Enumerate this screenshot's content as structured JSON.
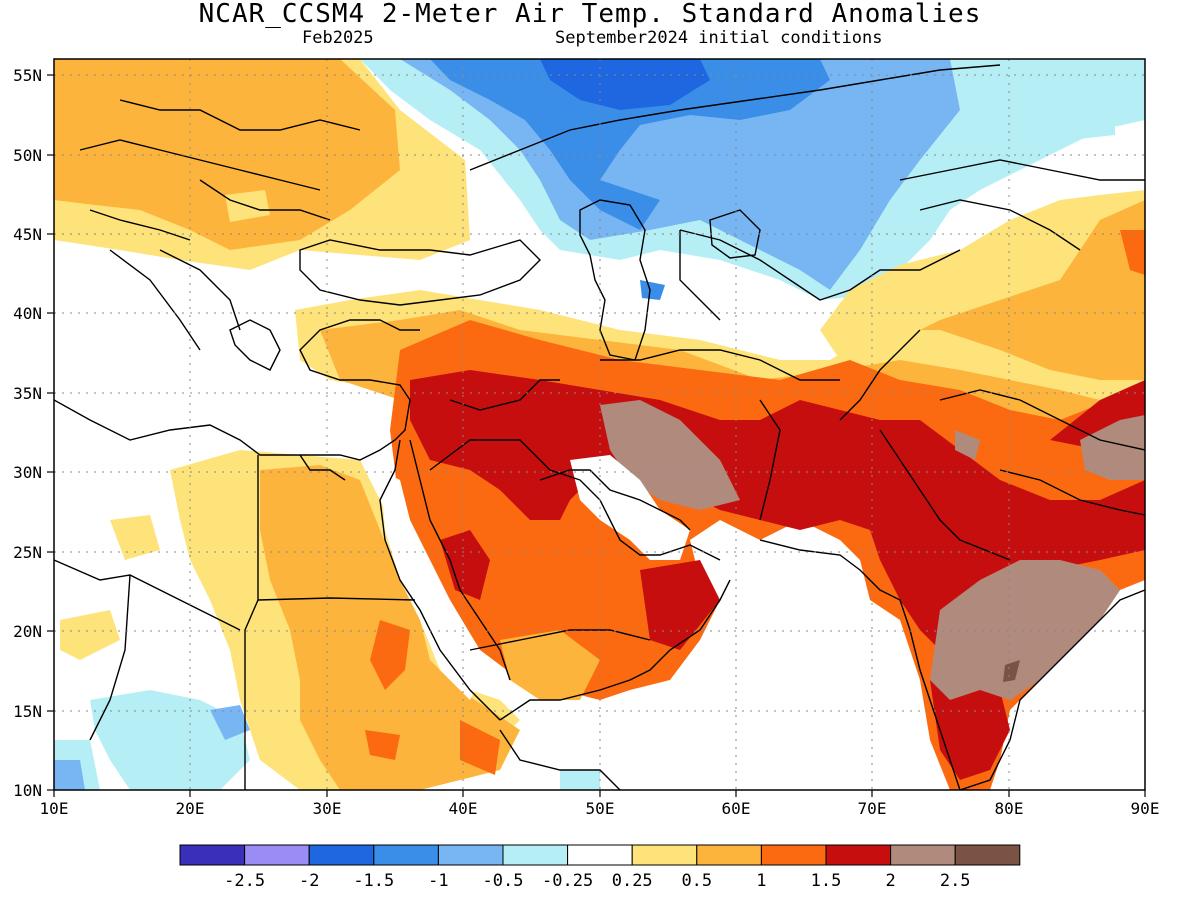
{
  "header": {
    "title": "NCAR_CCSM4 2-Meter Air Temp. Standard Anomalies",
    "valid_month": "Feb2025",
    "initial_conditions": "September2024 initial conditions"
  },
  "axes": {
    "lat_labels": [
      "55N",
      "50N",
      "45N",
      "40N",
      "35N",
      "30N",
      "25N",
      "20N",
      "15N",
      "10N"
    ],
    "lon_labels": [
      "10E",
      "20E",
      "30E",
      "40E",
      "50E",
      "60E",
      "70E",
      "80E",
      "90E"
    ],
    "lat_range": [
      10,
      56
    ],
    "lon_range": [
      10,
      90
    ],
    "grid": true
  },
  "colorbar": {
    "colors": [
      "#3a2fb8",
      "#9b8cf5",
      "#1f67e0",
      "#3a8ee8",
      "#78b6f3",
      "#b6eef6",
      "#ffffff",
      "#fde37a",
      "#fdb43d",
      "#fb6a10",
      "#c70e0e",
      "#b08b7d",
      "#7a5345"
    ],
    "labels": [
      "-2.5",
      "-2",
      "-1.5",
      "-1",
      "-0.5",
      "-0.25",
      "0.25",
      "0.5",
      "1",
      "1.5",
      "2",
      "2.5"
    ]
  },
  "legend_palette": {
    "light_blue": "#b6eef6",
    "mid_blue": "#78b6f3",
    "blue": "#3a8ee8",
    "dark_blue": "#1f67e0",
    "light_yellow": "#fde37a",
    "orange_yellow": "#fdb43d",
    "orange": "#fb6a10",
    "red": "#c70e0e",
    "brown": "#b08b7d",
    "dark_brown": "#7a5345"
  }
}
